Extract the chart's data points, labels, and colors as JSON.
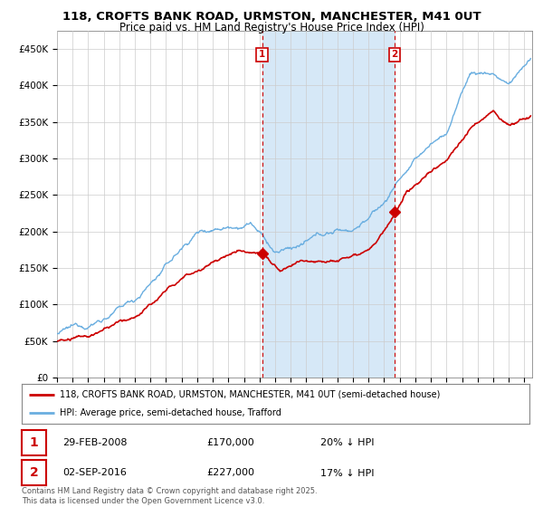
{
  "title_line1": "118, CROFTS BANK ROAD, URMSTON, MANCHESTER, M41 0UT",
  "title_line2": "Price paid vs. HM Land Registry's House Price Index (HPI)",
  "ylabel_ticks": [
    "£0",
    "£50K",
    "£100K",
    "£150K",
    "£200K",
    "£250K",
    "£300K",
    "£350K",
    "£400K",
    "£450K"
  ],
  "ytick_values": [
    0,
    50000,
    100000,
    150000,
    200000,
    250000,
    300000,
    350000,
    400000,
    450000
  ],
  "ymax": 475000,
  "sale1_date": "29-FEB-2008",
  "sale1_price": 170000,
  "sale1_price_str": "£170,000",
  "sale1_hpi": "20% ↓ HPI",
  "sale1_year": 2008.167,
  "sale2_date": "02-SEP-2016",
  "sale2_price": 227000,
  "sale2_price_str": "£227,000",
  "sale2_hpi": "17% ↓ HPI",
  "sale2_year": 2016.667,
  "legend_line1": "118, CROFTS BANK ROAD, URMSTON, MANCHESTER, M41 0UT (semi-detached house)",
  "legend_line2": "HPI: Average price, semi-detached house, Trafford",
  "footer": "Contains HM Land Registry data © Crown copyright and database right 2025.\nThis data is licensed under the Open Government Licence v3.0.",
  "hpi_color": "#6aaee0",
  "price_color": "#cc0000",
  "shade_color": "#d6e8f7",
  "plot_bg": "#ffffff",
  "xmin": 1995,
  "xmax": 2025.5
}
